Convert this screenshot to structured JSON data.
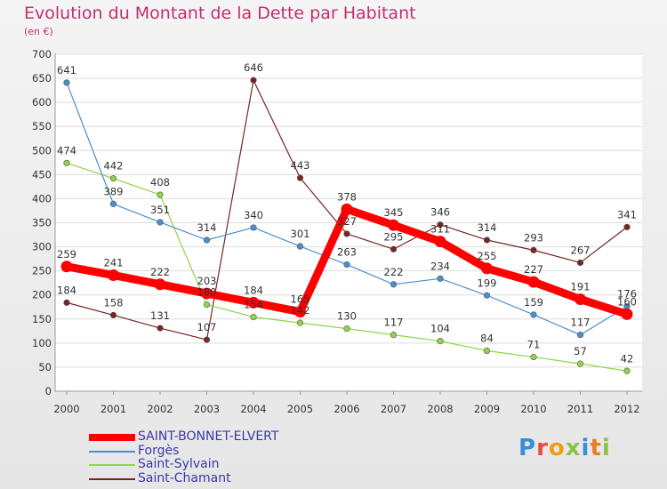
{
  "header": {
    "title": "Evolution du Montant de la Dette par Habitant",
    "unit": "(en €)"
  },
  "logo": {
    "text": "Proxiti"
  },
  "chart_data": {
    "type": "line",
    "title": "Evolution du Montant de la Dette par Habitant",
    "ylabel": "(en €)",
    "xlabel": "",
    "x": [
      "2000",
      "2001",
      "2002",
      "2003",
      "2004",
      "2005",
      "2006",
      "2007",
      "2008",
      "2009",
      "2010",
      "2011",
      "2012"
    ],
    "ylim": [
      0,
      700
    ],
    "yticks": [
      0,
      50,
      100,
      150,
      200,
      250,
      300,
      350,
      400,
      450,
      500,
      550,
      600,
      650,
      700
    ],
    "grid": "horizontal",
    "legend": "bottom-left",
    "series": [
      {
        "name": "SAINT-BONNET-ELVERT",
        "color": "#ff0000",
        "values": [
          259,
          241,
          222,
          203,
          184,
          165,
          378,
          345,
          311,
          255,
          227,
          191,
          160
        ]
      },
      {
        "name": "Forgès",
        "color": "#4a8fcf",
        "values": [
          641,
          389,
          351,
          314,
          340,
          301,
          263,
          222,
          234,
          199,
          159,
          117,
          176
        ]
      },
      {
        "name": "Saint-Sylvain",
        "color": "#8fd44a",
        "values": [
          474,
          442,
          408,
          180,
          154,
          142,
          130,
          117,
          104,
          84,
          71,
          57,
          42
        ]
      },
      {
        "name": "Saint-Chamant",
        "color": "#7a2323",
        "values": [
          184,
          158,
          131,
          107,
          646,
          443,
          327,
          295,
          346,
          314,
          293,
          267,
          341
        ]
      }
    ]
  }
}
